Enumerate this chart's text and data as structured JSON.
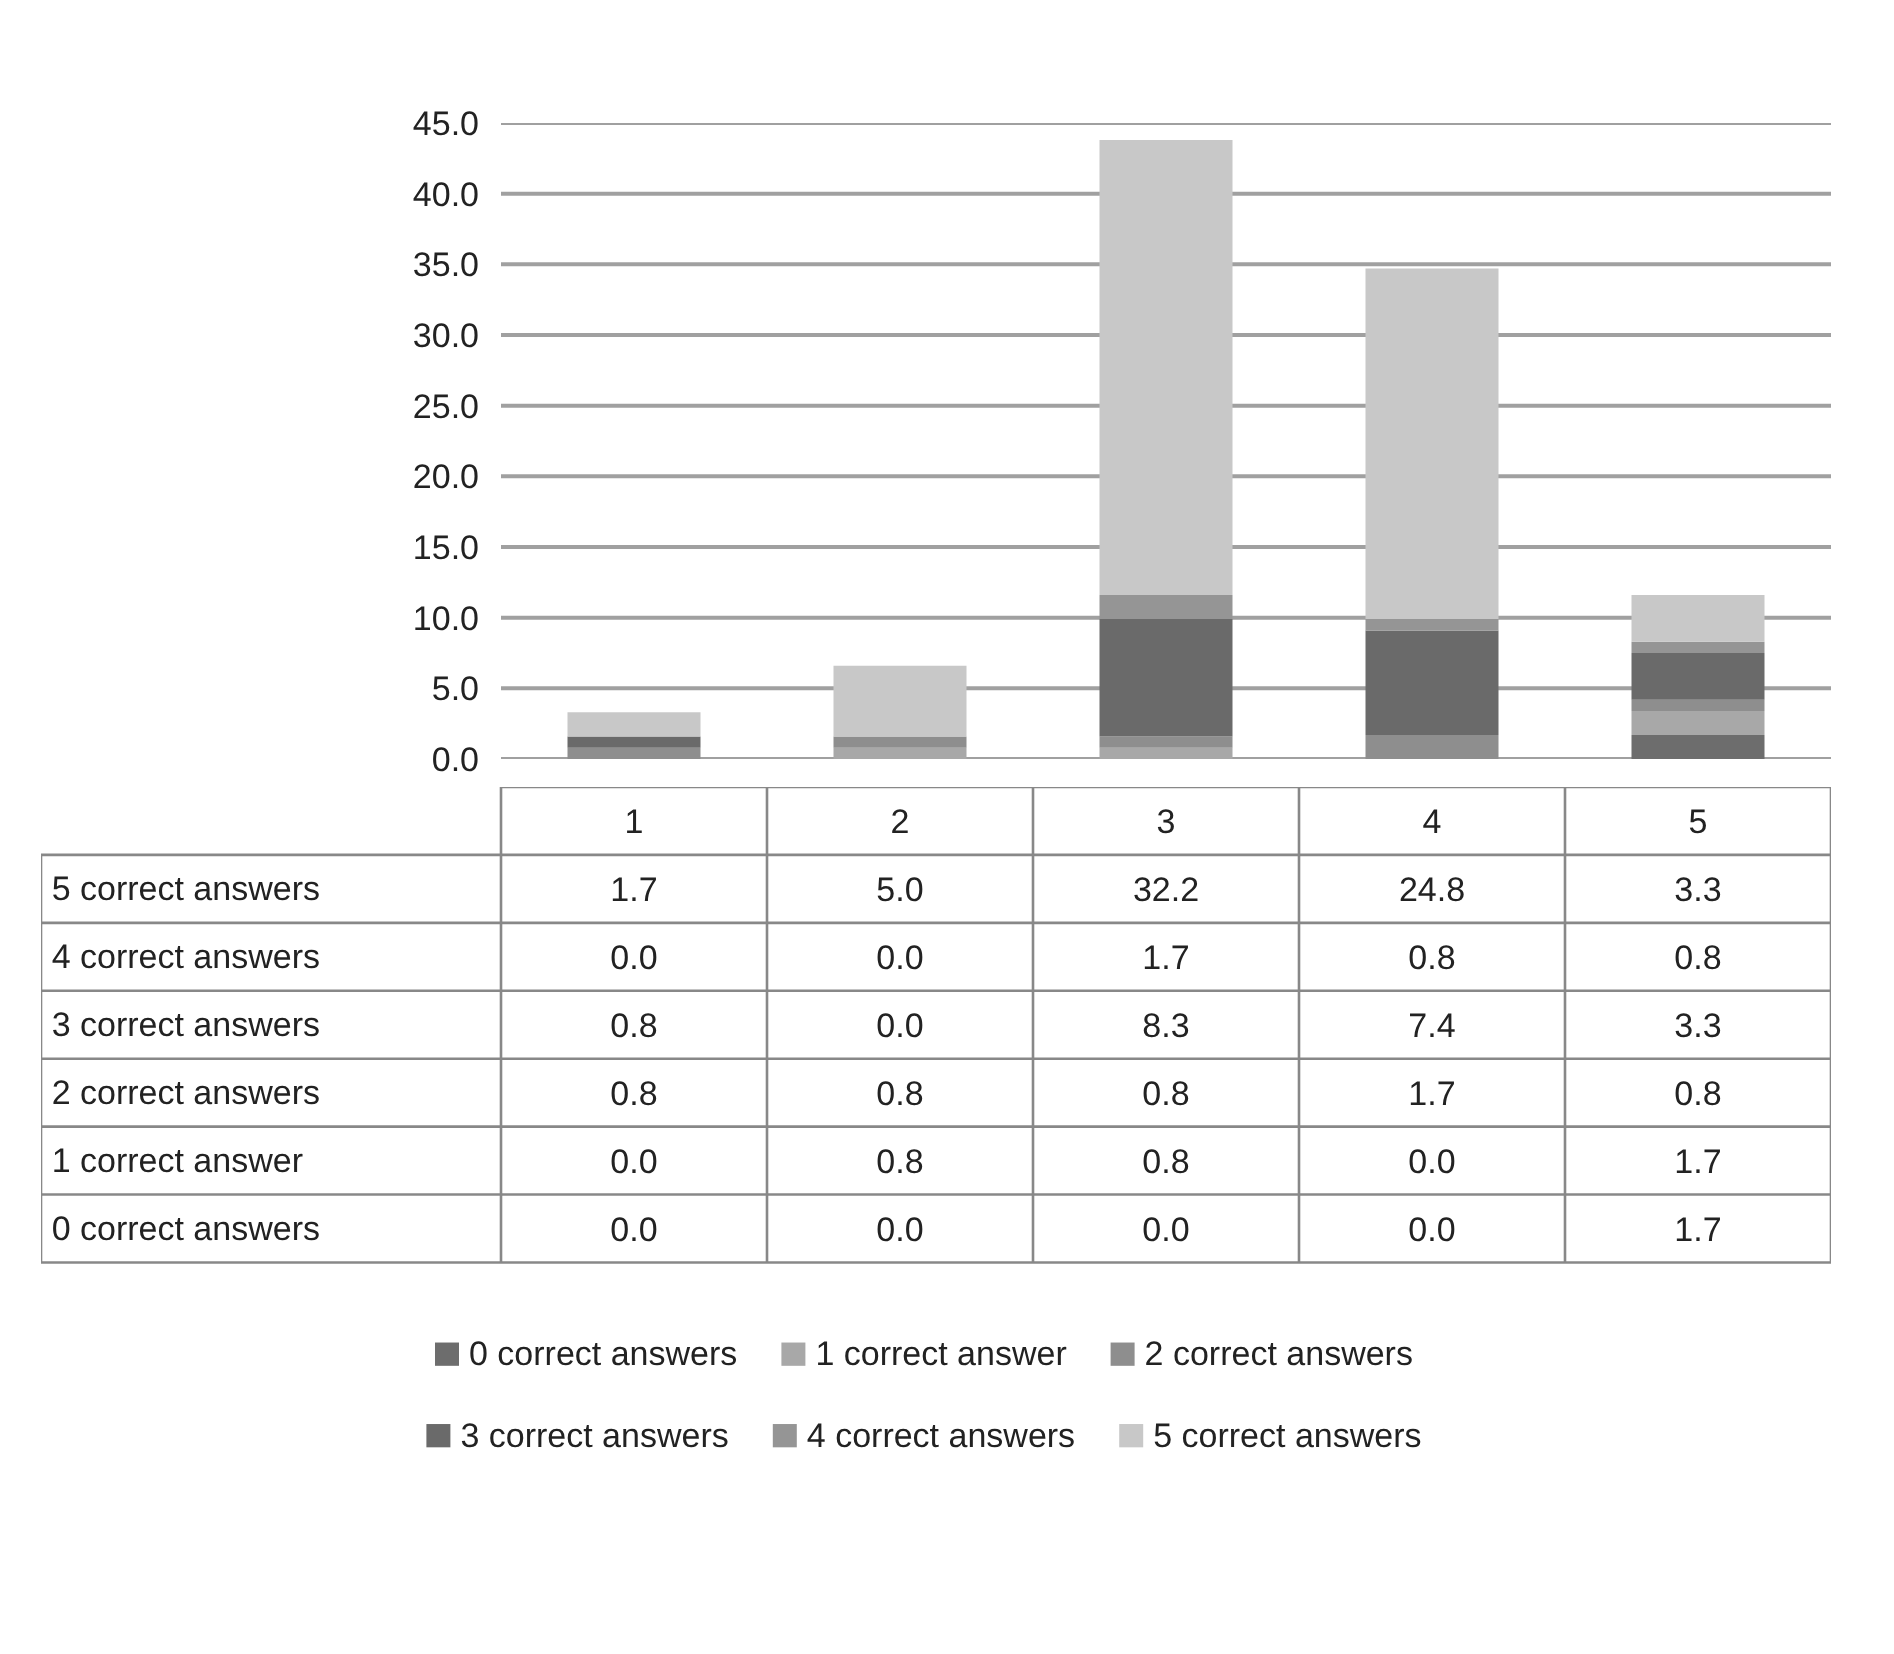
{
  "chart_data": {
    "type": "bar",
    "stacked": true,
    "categories": [
      "1",
      "2",
      "3",
      "4",
      "5"
    ],
    "series": [
      {
        "name": "0 correct answers",
        "color": "#6d6d6d",
        "values": [
          0.0,
          0.0,
          0.0,
          0.0,
          1.7
        ],
        "value_labels": [
          "0.0",
          "0.0",
          "0.0",
          "0.0",
          "1.7"
        ]
      },
      {
        "name": "1 correct answer",
        "color": "#a8a8a8",
        "values": [
          0.0,
          0.8,
          0.8,
          0.0,
          1.7
        ],
        "value_labels": [
          "0.0",
          "0.8",
          "0.8",
          "0.0",
          "1.7"
        ]
      },
      {
        "name": "2 correct answers",
        "color": "#8e8e8e",
        "values": [
          0.8,
          0.8,
          0.8,
          1.7,
          0.8
        ],
        "value_labels": [
          "0.8",
          "0.8",
          "0.8",
          "1.7",
          "0.8"
        ]
      },
      {
        "name": "3 correct answers",
        "color": "#6a6a6a",
        "values": [
          0.8,
          0.0,
          8.3,
          7.4,
          3.3
        ],
        "value_labels": [
          "0.8",
          "0.0",
          "8.3",
          "7.4",
          "3.3"
        ]
      },
      {
        "name": "4 correct answers",
        "color": "#959595",
        "values": [
          0.0,
          0.0,
          1.7,
          0.8,
          0.8
        ],
        "value_labels": [
          "0.0",
          "0.0",
          "1.7",
          "0.8",
          "0.8"
        ]
      },
      {
        "name": "5 correct answers",
        "color": "#c8c8c8",
        "values": [
          1.7,
          5.0,
          32.2,
          24.8,
          3.3
        ],
        "value_labels": [
          "1.7",
          "5.0",
          "32.2",
          "24.8",
          "3.3"
        ]
      }
    ],
    "ylim": [
      0,
      45
    ],
    "yticks": [
      {
        "value": 0,
        "label": "0.0"
      },
      {
        "value": 5,
        "label": "5.0"
      },
      {
        "value": 10,
        "label": "10.0"
      },
      {
        "value": 15,
        "label": "15.0"
      },
      {
        "value": 20,
        "label": "20.0"
      },
      {
        "value": 25,
        "label": "25.0"
      },
      {
        "value": 30,
        "label": "30.0"
      },
      {
        "value": 35,
        "label": "35.0"
      },
      {
        "value": 40,
        "label": "40.0"
      },
      {
        "value": 45,
        "label": "45.0"
      }
    ],
    "grid": "y",
    "legend": "bottom"
  }
}
